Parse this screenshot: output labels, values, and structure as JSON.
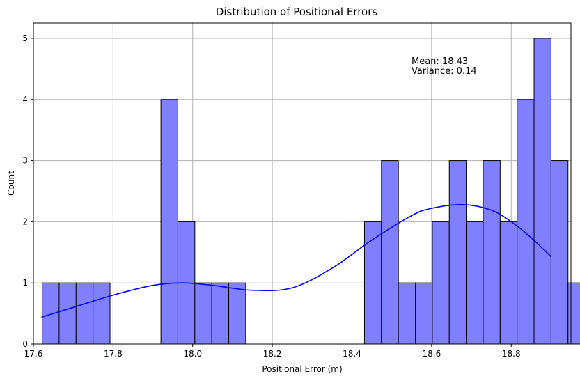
{
  "chart_data": {
    "type": "bar",
    "title": "Distribution of Positional Errors",
    "xlabel": "Positional Error (m)",
    "ylabel": "Count",
    "xlim": [
      17.6,
      18.95
    ],
    "ylim": [
      0,
      5.25
    ],
    "x_ticks": [
      17.6,
      17.8,
      18.0,
      18.2,
      18.4,
      18.6,
      18.8
    ],
    "x_tick_labels": [
      "17.6",
      "17.8",
      "18.0",
      "18.2",
      "18.4",
      "18.6",
      "18.8"
    ],
    "y_ticks": [
      0,
      1,
      2,
      3,
      4,
      5
    ],
    "y_tick_labels": [
      "0",
      "1",
      "2",
      "3",
      "4",
      "5"
    ],
    "grid": true,
    "bar_color": "#8080ff",
    "bar_edge_color": "#000000",
    "line_color": "#0000ff",
    "bins": {
      "start": 17.622,
      "width": 0.0426,
      "counts": [
        1,
        1,
        1,
        1,
        0,
        0,
        0,
        4,
        2,
        1,
        1,
        1,
        0,
        0,
        0,
        0,
        0,
        0,
        0,
        2,
        3,
        1,
        1,
        2,
        3,
        2,
        3,
        2,
        4,
        5,
        3,
        1
      ]
    },
    "kde": {
      "x": [
        17.62,
        17.7,
        17.8,
        17.9,
        17.975,
        18.05,
        18.15,
        18.25,
        18.35,
        18.45,
        18.55,
        18.6,
        18.68,
        18.75,
        18.8,
        18.85,
        18.9
      ],
      "y": [
        0.44,
        0.6,
        0.8,
        0.96,
        1.0,
        0.96,
        0.88,
        0.92,
        1.24,
        1.7,
        2.1,
        2.22,
        2.28,
        2.19,
        2.0,
        1.74,
        1.43
      ]
    },
    "annotation": {
      "line1": "Mean: 18.43",
      "line2": "Variance: 0.14"
    }
  }
}
